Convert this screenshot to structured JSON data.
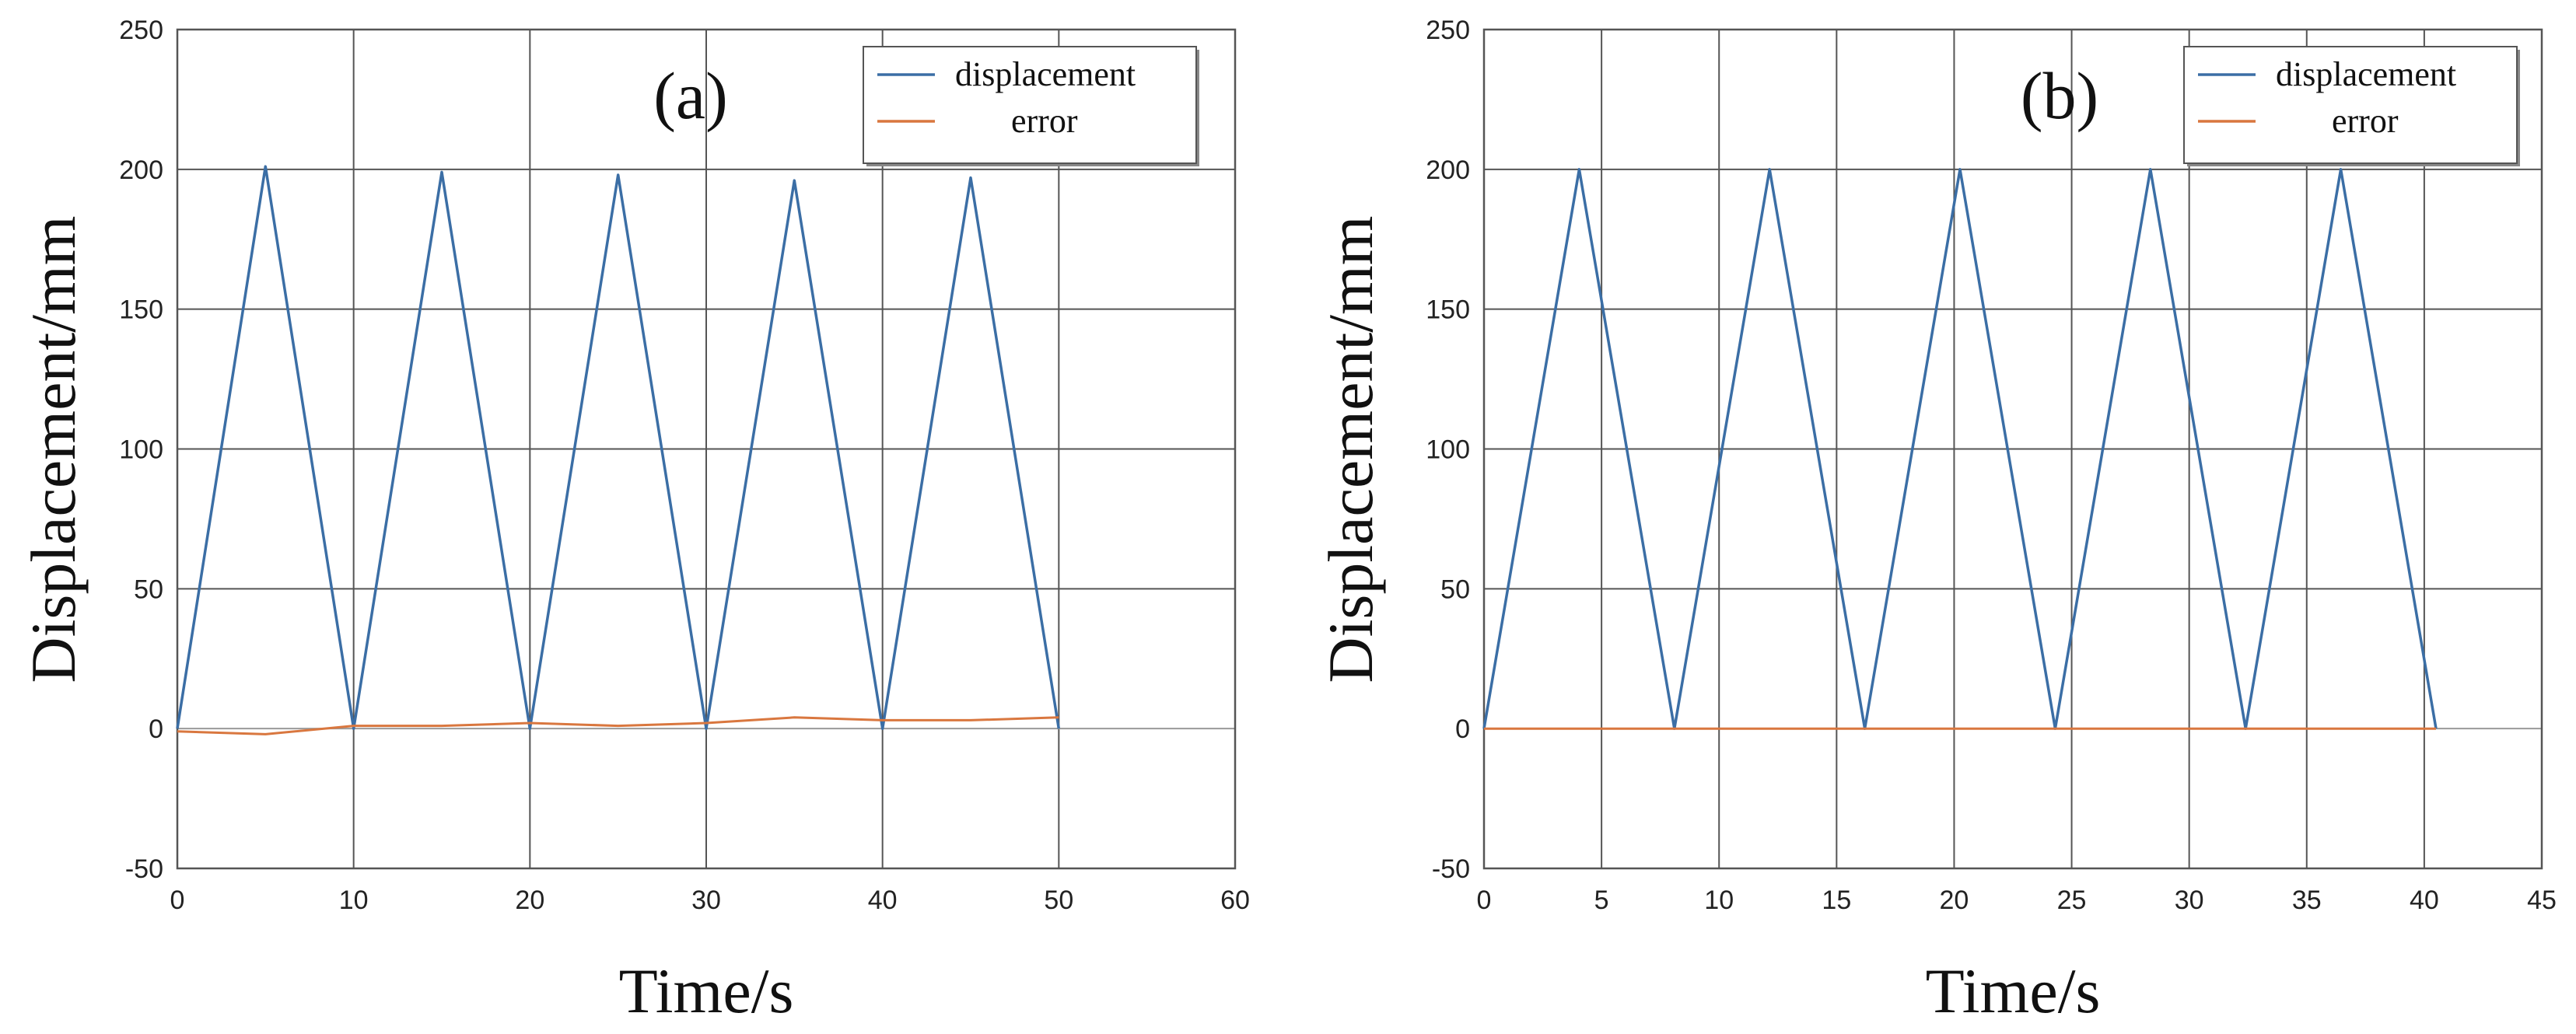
{
  "chart_data": [
    {
      "type": "line",
      "panel_label": "(a)",
      "xlabel": "Time/s",
      "ylabel": "Displacement/mm",
      "xlim": [
        0,
        60
      ],
      "ylim": [
        -50,
        250
      ],
      "xticks": [
        "0",
        "10",
        "20",
        "30",
        "40",
        "50",
        "60"
      ],
      "yticks": [
        "-50",
        "0",
        "50",
        "100",
        "150",
        "200",
        "250"
      ],
      "grid": true,
      "legend_position": "top-right",
      "series": [
        {
          "name": "displacement",
          "color": "#3b6ea5",
          "x": [
            0,
            5,
            10,
            15,
            20,
            25,
            30,
            35,
            40,
            45,
            50
          ],
          "y": [
            0,
            201,
            0,
            199,
            0,
            198,
            0,
            196,
            0,
            197,
            0
          ]
        },
        {
          "name": "error",
          "color": "#d9773f",
          "x": [
            0,
            5,
            10,
            15,
            20,
            25,
            30,
            35,
            40,
            45,
            50
          ],
          "y": [
            -1,
            -2,
            1,
            1,
            2,
            1,
            2,
            4,
            3,
            3,
            4
          ]
        }
      ]
    },
    {
      "type": "line",
      "panel_label": "(b)",
      "xlabel": "Time/s",
      "ylabel": "Displacement/mm",
      "xlim": [
        0,
        45
      ],
      "ylim": [
        -50,
        250
      ],
      "xticks": [
        "0",
        "5",
        "10",
        "15",
        "20",
        "25",
        "30",
        "35",
        "40",
        "45"
      ],
      "yticks": [
        "-50",
        "0",
        "50",
        "100",
        "150",
        "200",
        "250"
      ],
      "grid": true,
      "legend_position": "top-right",
      "series": [
        {
          "name": "displacement",
          "color": "#3b6ea5",
          "x": [
            0,
            4.05,
            8.1,
            12.15,
            16.2,
            20.25,
            24.3,
            28.35,
            32.4,
            36.45,
            40.5
          ],
          "y": [
            0,
            200,
            0,
            200,
            0,
            200,
            0,
            200,
            0,
            200,
            0
          ]
        },
        {
          "name": "error",
          "color": "#d9773f",
          "x": [
            0,
            10,
            20,
            30,
            40.5
          ],
          "y": [
            0,
            0,
            0,
            0,
            0
          ]
        }
      ]
    }
  ]
}
